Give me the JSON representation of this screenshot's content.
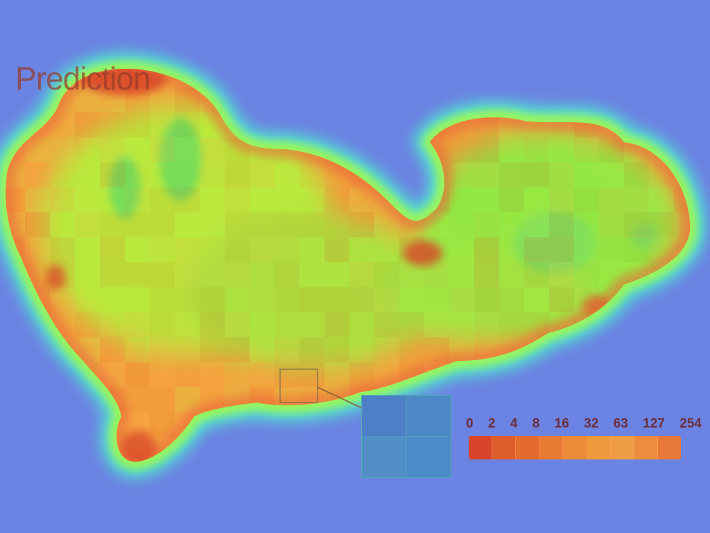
{
  "title": "Prediction",
  "colors": {
    "background": "#6b83e2",
    "halo_cyan": "#4fe0d2",
    "halo_green": "#7dfc6a",
    "edge_orange": "#f5a13e",
    "edge_red": "#e2552b",
    "interior_yellow_green": "#b8ea3a",
    "interior_green": "#8ee843",
    "hotspot_red": "#d9452a",
    "zoom_box_fill": "#4f86c9",
    "zoom_box_border": "#4fb3a8"
  },
  "legend": {
    "labels": [
      "0",
      "2",
      "4",
      "8",
      "16",
      "32",
      "63",
      "127",
      "254"
    ],
    "cell_colors": [
      "#d9452a",
      "#de5c2c",
      "#e46b2e",
      "#e87a33",
      "#ec8a37",
      "#ee9a3c",
      "#ef9d44",
      "#ee8c3e",
      "#e8783a"
    ]
  },
  "map": {
    "style": "density heatmap",
    "zoom_inset": "callout of a small square region enlarged to the lower right"
  }
}
